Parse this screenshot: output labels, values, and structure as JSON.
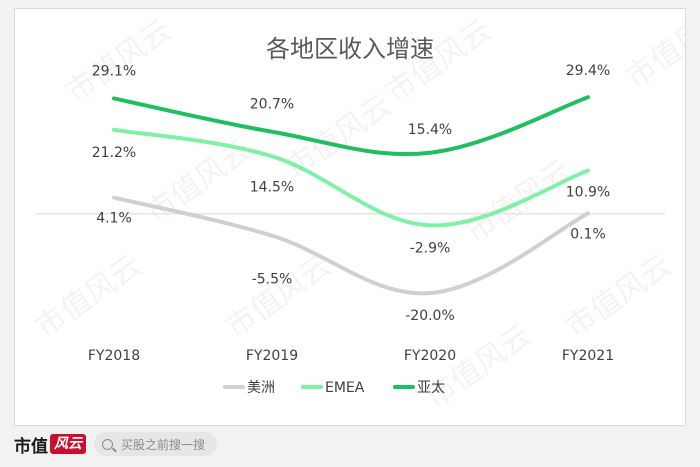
{
  "chart_data": {
    "type": "line",
    "title": "各地区收入增速",
    "categories": [
      "FY2018",
      "FY2019",
      "FY2020",
      "FY2021"
    ],
    "ylim": [
      -24,
      34
    ],
    "grid": false,
    "legend_position": "bottom",
    "series": [
      {
        "name": "美洲",
        "color": "#d0d0d0",
        "values": [
          4.1,
          -5.5,
          -20.0,
          0.1
        ],
        "labels": [
          "4.1%",
          "-5.5%",
          "-20.0%",
          "0.1%"
        ]
      },
      {
        "name": "EMEA",
        "color": "#7ff0a8",
        "values": [
          21.2,
          14.5,
          -2.9,
          10.9
        ],
        "labels": [
          "21.2%",
          "14.5%",
          "-2.9%",
          "10.9%"
        ]
      },
      {
        "name": "亚太",
        "color": "#1fbf5f",
        "values": [
          29.1,
          20.7,
          15.4,
          29.4
        ],
        "labels": [
          "29.1%",
          "20.7%",
          "15.4%",
          "29.4%"
        ]
      }
    ]
  },
  "watermark": "市值风云",
  "footer": {
    "brand": "市值",
    "brand_mark": "风云",
    "search_placeholder": "买股之前搜一搜"
  }
}
